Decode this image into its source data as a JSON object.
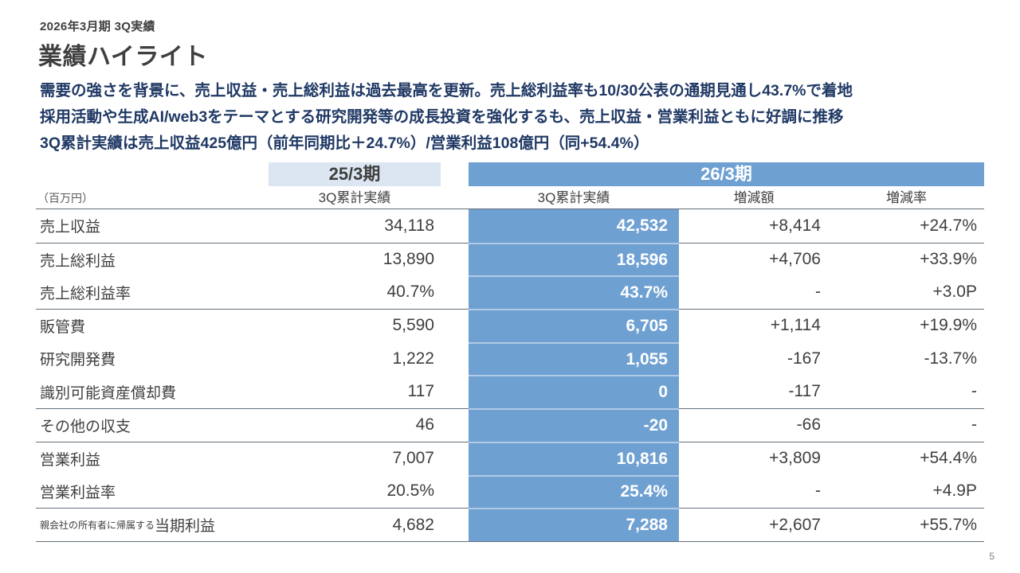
{
  "slide": {
    "eyebrow": "2026年3月期 3Q実績",
    "title": "業績ハイライト",
    "highlights": [
      "需要の強さを背景に、売上収益・売上総利益は過去最高を更新。売上総利益率も10/30公表の通期見通し43.7%で着地",
      "採用活動や生成AI/web3をテーマとする研究開発等の成長投資を強化するも、売上収益・営業利益ともに好調に推移",
      "3Q累計実績は売上収益425億円（前年同期比＋24.7%）/営業利益108億円（同+54.4%）"
    ],
    "page_number": "5"
  },
  "table": {
    "unit_label": "（百万円）",
    "column_groups": {
      "prev_period": "25/3期",
      "current_period": "26/3期"
    },
    "column_headers": {
      "prev_actual": "3Q累計実績",
      "current_actual": "3Q累計実績",
      "change_amount": "増減額",
      "change_rate": "増減率"
    },
    "rows": [
      {
        "label": "売上収益",
        "label_prefix": "",
        "prev": "34,118",
        "current": "42,532",
        "change": "+8,414",
        "rate": "+24.7%",
        "rule_above": false
      },
      {
        "label": "売上総利益",
        "label_prefix": "",
        "prev": "13,890",
        "current": "18,596",
        "change": "+4,706",
        "rate": "+33.9%",
        "rule_above": true
      },
      {
        "label": "売上総利益率",
        "label_prefix": "",
        "prev": "40.7%",
        "current": "43.7%",
        "change": "-",
        "rate": "+3.0P",
        "rule_above": false
      },
      {
        "label": "販管費",
        "label_prefix": "",
        "prev": "5,590",
        "current": "6,705",
        "change": "+1,114",
        "rate": "+19.9%",
        "rule_above": true
      },
      {
        "label": "研究開発費",
        "label_prefix": "",
        "prev": "1,222",
        "current": "1,055",
        "change": "-167",
        "rate": "-13.7%",
        "rule_above": false
      },
      {
        "label": "識別可能資産償却費",
        "label_prefix": "",
        "prev": "117",
        "current": "0",
        "change": "-117",
        "rate": "-",
        "rule_above": false
      },
      {
        "label": "その他の収支",
        "label_prefix": "",
        "prev": "46",
        "current": "-20",
        "change": "-66",
        "rate": "-",
        "rule_above": true
      },
      {
        "label": "営業利益",
        "label_prefix": "",
        "prev": "7,007",
        "current": "10,816",
        "change": "+3,809",
        "rate": "+54.4%",
        "rule_above": true
      },
      {
        "label": "営業利益率",
        "label_prefix": "",
        "prev": "20.5%",
        "current": "25.4%",
        "change": "-",
        "rate": "+4.9P",
        "rule_above": false
      },
      {
        "label": "当期利益",
        "label_prefix": "親会社の所有者に帰属する",
        "prev": "4,682",
        "current": "7,288",
        "change": "+2,607",
        "rate": "+55.7%",
        "rule_above": true
      }
    ]
  },
  "colors": {
    "navy": "#1f3864",
    "text-dark": "#3f3f3f",
    "blue": "#6fa0d2",
    "lightblue": "#dce6f2",
    "rule": "#64707a"
  }
}
